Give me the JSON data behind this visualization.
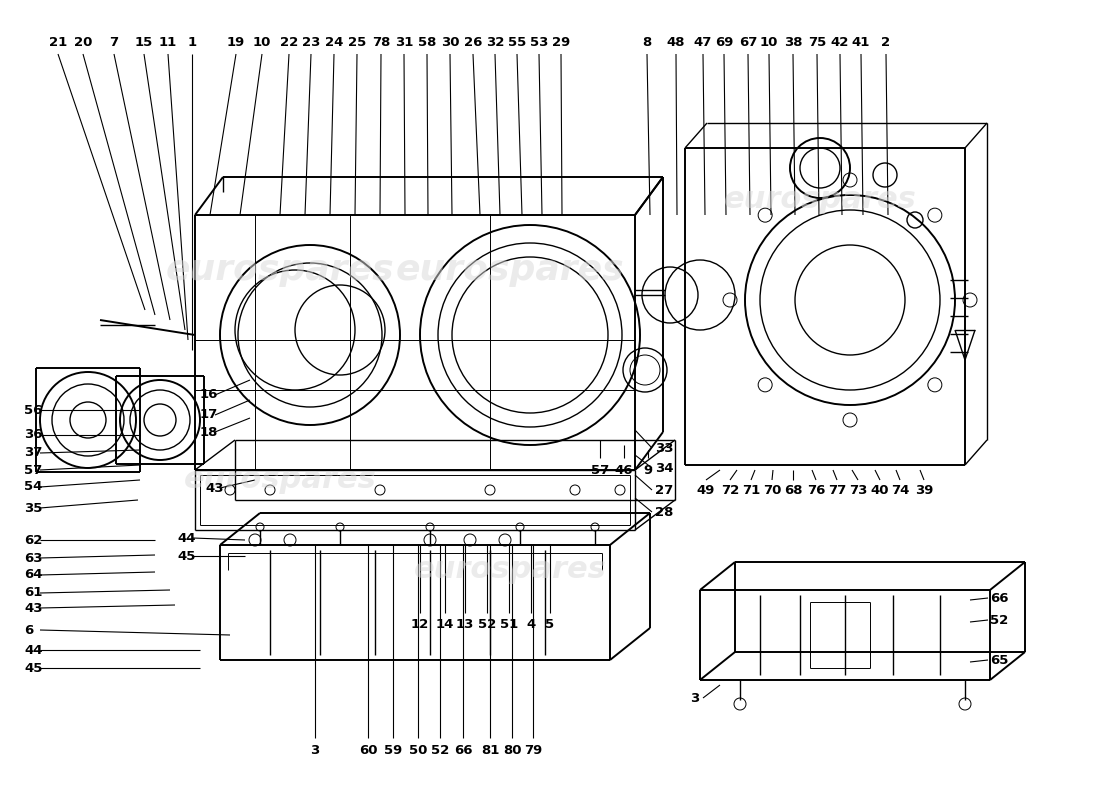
{
  "bg": "#ffffff",
  "lc": "#000000",
  "tc": "#000000",
  "lw_thick": 1.4,
  "lw_med": 1.0,
  "lw_thin": 0.7,
  "lw_leader": 0.8,
  "fs": 9.5,
  "fw": "bold",
  "top_left_labels": [
    [
      "21",
      60
    ],
    [
      "20",
      85
    ],
    [
      "7",
      115
    ],
    [
      "15",
      145
    ],
    [
      "11",
      168
    ],
    [
      "1",
      192
    ]
  ],
  "top_center_labels": [
    [
      "19",
      237
    ],
    [
      "10",
      262
    ],
    [
      "22",
      289
    ],
    [
      "23",
      311
    ],
    [
      "24",
      334
    ],
    [
      "25",
      357
    ],
    [
      "78",
      381
    ],
    [
      "31",
      404
    ],
    [
      "58",
      427
    ],
    [
      "30",
      450
    ],
    [
      "26",
      473
    ],
    [
      "32",
      495
    ],
    [
      "55",
      517
    ],
    [
      "53",
      539
    ],
    [
      "29",
      561
    ]
  ],
  "top_right_labels": [
    [
      "8",
      647
    ],
    [
      "48",
      676
    ],
    [
      "47",
      703
    ],
    [
      "69",
      724
    ],
    [
      "67",
      748
    ],
    [
      "10",
      769
    ],
    [
      "38",
      793
    ],
    [
      "75",
      817
    ],
    [
      "42",
      840
    ],
    [
      "41",
      861
    ],
    [
      "2",
      886
    ]
  ],
  "watermark_color": "#d8d8d8",
  "watermark_alpha": 0.5
}
